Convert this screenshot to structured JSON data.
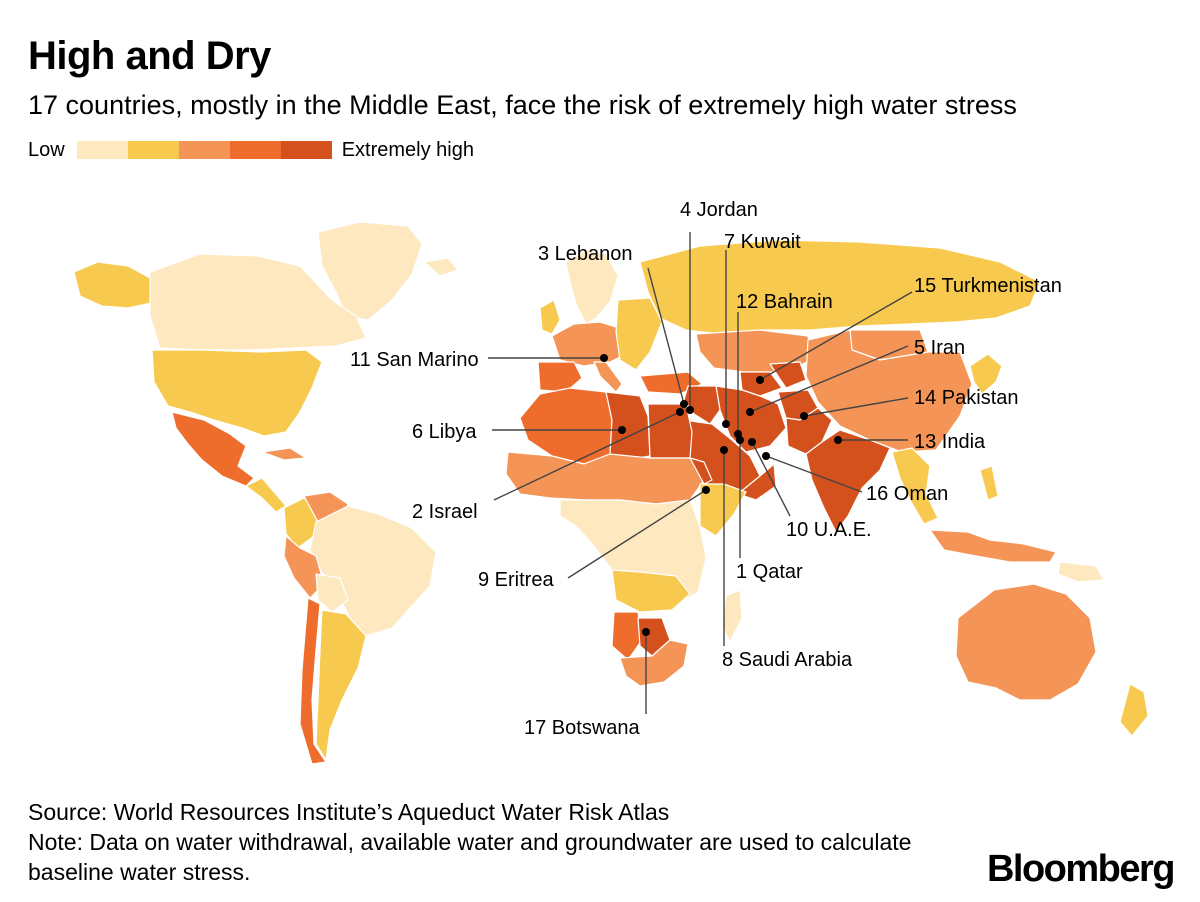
{
  "header": {
    "title": "High and Dry",
    "subtitle": "17 countries, mostly in the Middle East, face the risk of extremely high water stress"
  },
  "legend": {
    "low_label": "Low",
    "high_label": "Extremely high",
    "colors": [
      "#fde8bf",
      "#f7c94e",
      "#f49456",
      "#ee6c2c",
      "#d4501c"
    ]
  },
  "map": {
    "land_colors": {
      "low": "#fde8bf",
      "low_medium": "#f7c94e",
      "medium_high": "#f49456",
      "high": "#ee6c2c",
      "extremely_high": "#d4501c"
    },
    "callouts": [
      {
        "rank": 1,
        "label": "1 Qatar"
      },
      {
        "rank": 2,
        "label": "2 Israel"
      },
      {
        "rank": 3,
        "label": "3 Lebanon"
      },
      {
        "rank": 4,
        "label": "4 Jordan"
      },
      {
        "rank": 5,
        "label": "5 Iran"
      },
      {
        "rank": 6,
        "label": "6 Libya"
      },
      {
        "rank": 7,
        "label": "7 Kuwait"
      },
      {
        "rank": 8,
        "label": "8 Saudi Arabia"
      },
      {
        "rank": 9,
        "label": "9 Eritrea"
      },
      {
        "rank": 10,
        "label": "10 U.A.E."
      },
      {
        "rank": 11,
        "label": "11 San Marino"
      },
      {
        "rank": 12,
        "label": "12 Bahrain"
      },
      {
        "rank": 13,
        "label": "13 India"
      },
      {
        "rank": 14,
        "label": "14 Pakistan"
      },
      {
        "rank": 15,
        "label": "15 Turkmenistan"
      },
      {
        "rank": 16,
        "label": "16 Oman"
      },
      {
        "rank": 17,
        "label": "17 Botswana"
      }
    ]
  },
  "footer": {
    "source": "Source: World Resources Institute’s Aqueduct Water Risk Atlas",
    "note": "Note: Data on water withdrawal, available water and groundwater are used to calculate baseline water stress.",
    "brand": "Bloomberg"
  }
}
